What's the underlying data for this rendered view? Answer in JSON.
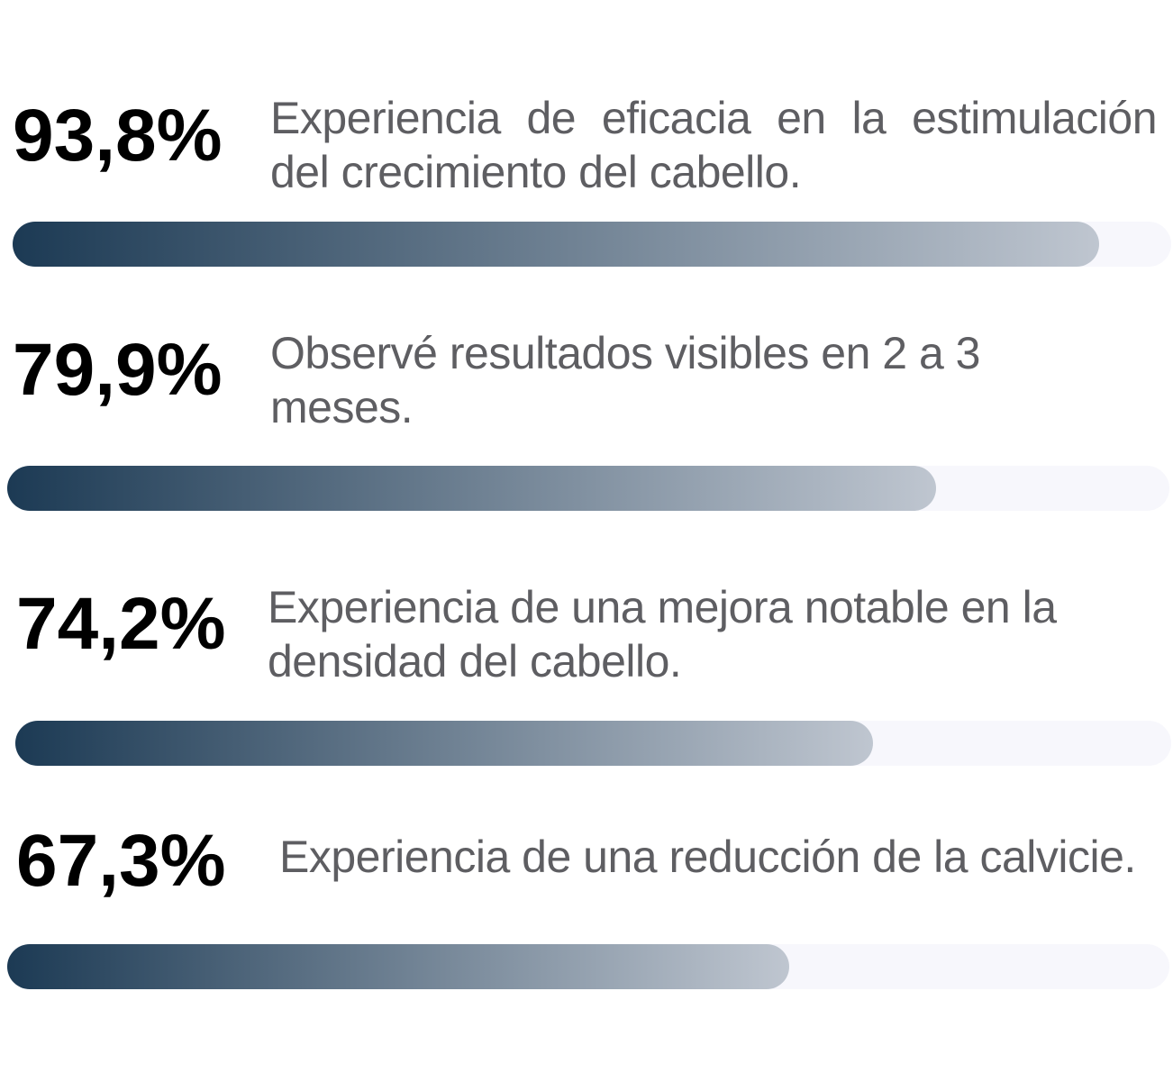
{
  "colors": {
    "fill_start": "#1c3a54",
    "fill_end": "#bfc6d0",
    "track": "#f7f7fc",
    "value_text": "#000000",
    "label_text": "#5e5e62"
  },
  "chart_data": {
    "type": "bar",
    "orientation": "horizontal",
    "xlim": [
      0,
      100
    ],
    "categories": [
      "Experiencia de eficacia en la estimulación del crecimiento del cabello.",
      "Observé resultados visibles en 2 a 3 meses.",
      "Experiencia de una mejora notable en la densidad del cabello.",
      "Experiencia de una reducción de la calvicie."
    ],
    "values": [
      93.8,
      79.9,
      74.2,
      67.3
    ],
    "value_labels": [
      "93,8%",
      "79,9%",
      "74,2%",
      "67,3%"
    ]
  }
}
